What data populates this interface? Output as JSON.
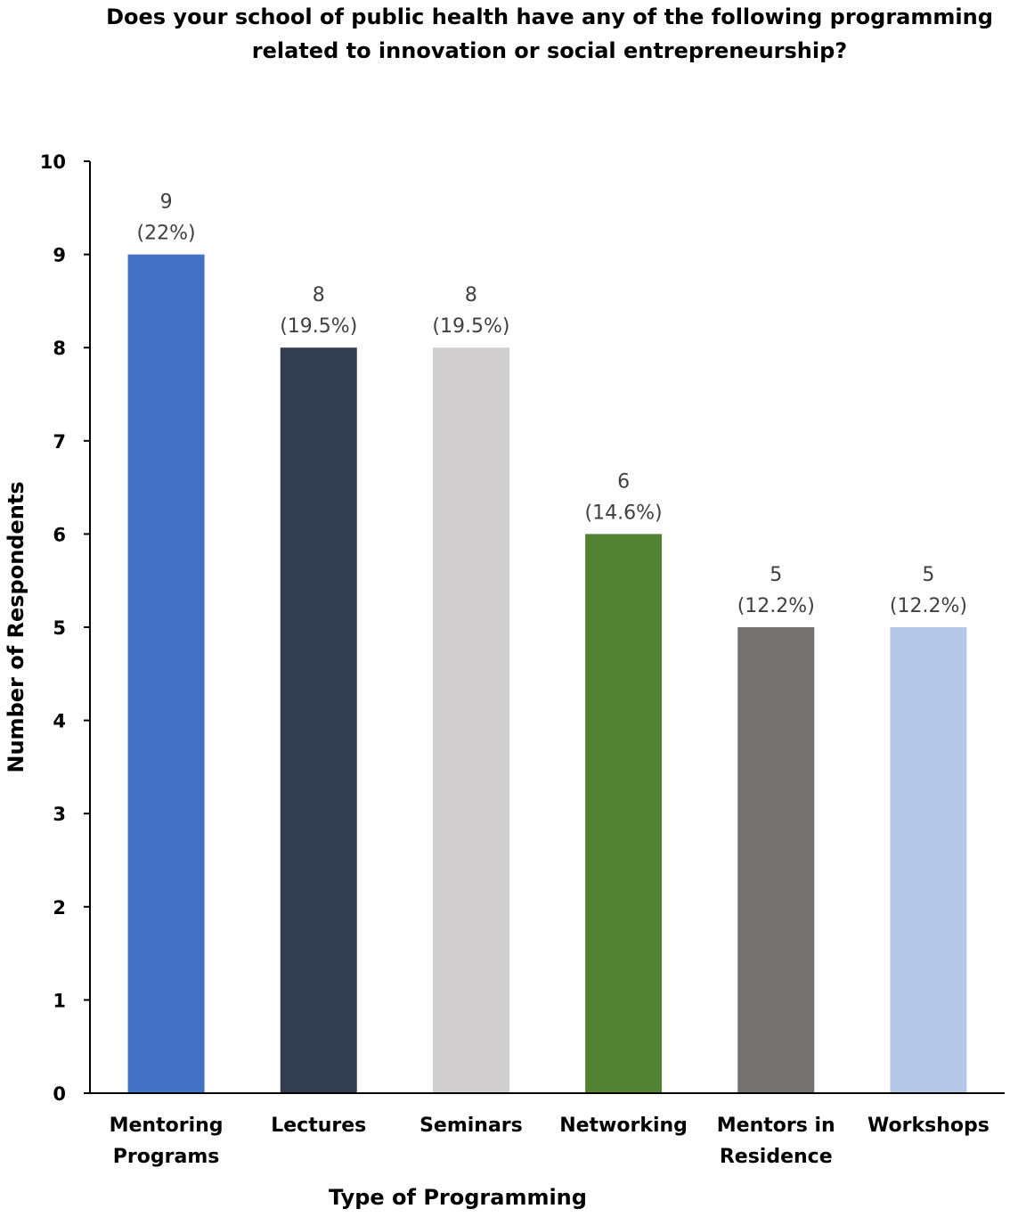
{
  "chart_data": {
    "type": "bar",
    "title_lines": [
      "Does your school of public health have any of the following programming",
      "related to innovation or social entrepreneurship?"
    ],
    "xlabel": "Type of Programming",
    "ylabel": "Number of Respondents",
    "ylim": [
      0,
      10
    ],
    "yticks": [
      "0",
      "1",
      "2",
      "3",
      "4",
      "5",
      "6",
      "7",
      "8",
      "9",
      "10"
    ],
    "grid": false,
    "categories": [
      [
        "Mentoring",
        "Programs"
      ],
      [
        "Lectures"
      ],
      [
        "Seminars"
      ],
      [
        "Networking"
      ],
      [
        "Mentors in",
        "Residence"
      ],
      [
        "Workshops"
      ]
    ],
    "values": [
      9,
      8,
      8,
      6,
      5,
      5
    ],
    "data_labels": [
      [
        "9",
        "(22%)"
      ],
      [
        "8",
        "(19.5%)"
      ],
      [
        "8",
        "(19.5%)"
      ],
      [
        "6",
        "(14.6%)"
      ],
      [
        "5",
        "(12.2%)"
      ],
      [
        "5",
        "(12.2%)"
      ]
    ],
    "colors": [
      "#4472C4",
      "#323E4F",
      "#D0CECE",
      "#548235",
      "#767171",
      "#B4C7E7"
    ]
  }
}
